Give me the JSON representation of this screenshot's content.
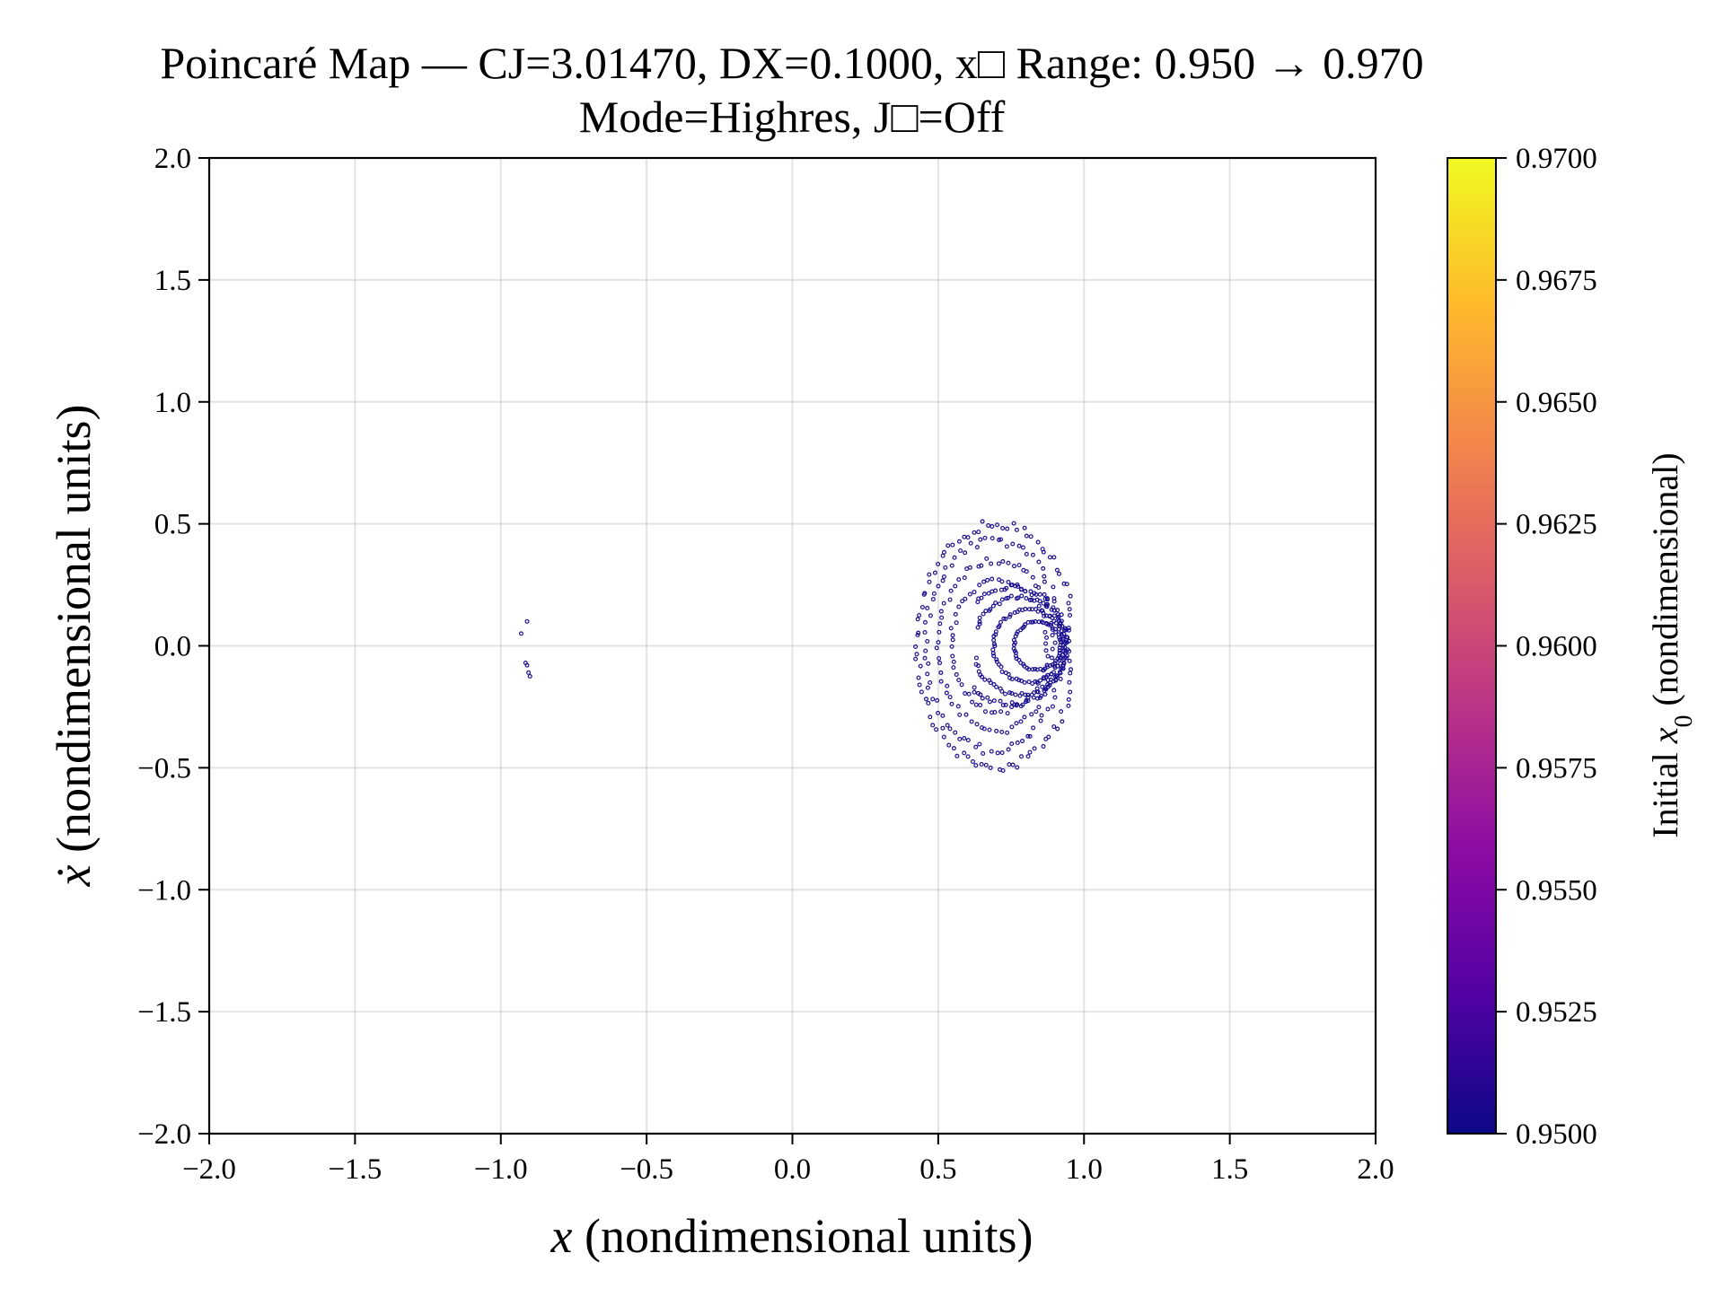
{
  "chart_data": {
    "type": "scatter",
    "title_line1": "Poincaré Map — CJ=3.01470, DX=0.1000, x□ Range: 0.950 → 0.970",
    "title_line2": "Mode=Highres, J□=Off",
    "xlabel_sym": "x",
    "xlabel_text": " (nondimensional units)",
    "ylabel_sym": "ẋ",
    "ylabel_text": " (nondimensional units)",
    "xlim": [
      -2.0,
      2.0
    ],
    "ylim": [
      -2.0,
      2.0
    ],
    "xticks": [
      "−2.0",
      "−1.5",
      "−1.0",
      "−0.5",
      "0.0",
      "0.5",
      "1.0",
      "1.5",
      "2.0"
    ],
    "yticks": [
      "−2.0",
      "−1.5",
      "−1.0",
      "−0.5",
      "0.0",
      "0.5",
      "1.0",
      "1.5",
      "2.0"
    ],
    "grid": true,
    "marker_color": "#1a0f8f",
    "colorbar": {
      "label_prefix": "Initial ",
      "label_sym": "x",
      "label_sub": "0",
      "label_suffix": " (nondimensional)",
      "range": [
        0.95,
        0.97
      ],
      "ticks": [
        "0.9500",
        "0.9525",
        "0.9550",
        "0.9575",
        "0.9600",
        "0.9625",
        "0.9650",
        "0.9675",
        "0.9700"
      ],
      "colormap": "plasma",
      "colormap_stops": [
        "#0d0887",
        "#5302a3",
        "#8b0aa5",
        "#b83289",
        "#db5c68",
        "#f48849",
        "#febd2a",
        "#f0f921"
      ]
    },
    "series": [
      {
        "points": [
          [
            -0.93,
            0.05
          ],
          [
            -0.91,
            0.1
          ],
          [
            -0.915,
            -0.07
          ],
          [
            -0.91,
            -0.08
          ],
          [
            -0.905,
            -0.11
          ],
          [
            -0.9,
            -0.125
          ]
        ],
        "structure": {
          "island_center": [
            0.7,
            0.0
          ],
          "rings": [
            {
              "cx": 0.7,
              "cy": 0.0,
              "ax": 0.27,
              "ay": 0.5,
              "n": 95
            },
            {
              "cx": 0.69,
              "cy": 0.0,
              "ax": 0.235,
              "ay": 0.43,
              "n": 80
            },
            {
              "cx": 0.7,
              "cy": 0.0,
              "ax": 0.2,
              "ay": 0.35,
              "n": 70
            },
            {
              "cx": 0.71,
              "cy": 0.0,
              "ax": 0.165,
              "ay": 0.27,
              "n": 60
            },
            {
              "cx": 0.75,
              "cy": 0.0,
              "ax": 0.19,
              "ay": 0.24,
              "n": 90,
              "xmin": 0.62
            },
            {
              "cx": 0.78,
              "cy": 0.0,
              "ax": 0.16,
              "ay": 0.2,
              "n": 85,
              "xmin": 0.63
            },
            {
              "cx": 0.81,
              "cy": 0.0,
              "ax": 0.12,
              "ay": 0.15,
              "n": 70,
              "xmin": 0.66
            },
            {
              "cx": 0.84,
              "cy": 0.0,
              "ax": 0.08,
              "ay": 0.1,
              "n": 55,
              "xmin": 0.7
            }
          ]
        }
      }
    ]
  }
}
